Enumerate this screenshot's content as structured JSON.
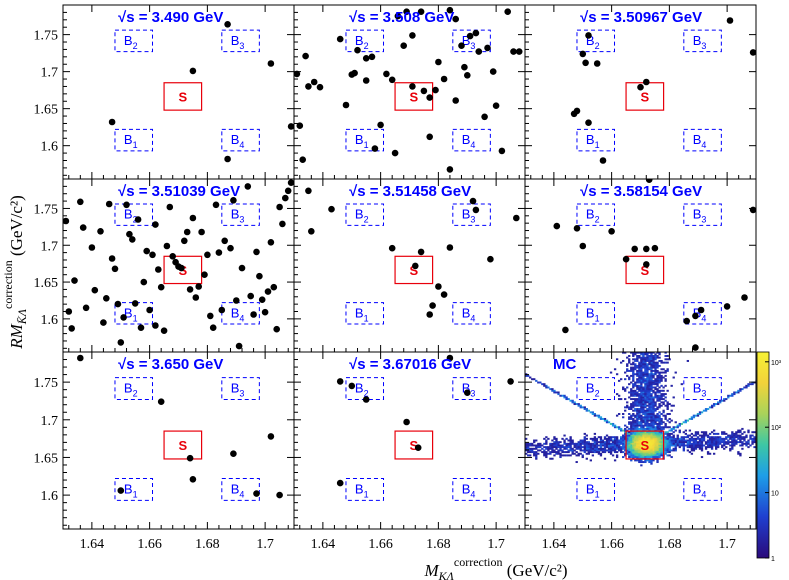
{
  "chart_data": {
    "type": "scatter",
    "xlabel_main": "M",
    "xlabel_sub": "KΛ",
    "xlabel_sup": "correction",
    "xlabel_unit": " (GeV/c²)",
    "ylabel_main": "RM",
    "ylabel_sub": "K̄Λ",
    "ylabel_sup": "correction",
    "ylabel_unit": " (GeV/c²)",
    "xlim": [
      1.63,
      1.71
    ],
    "ylim": [
      1.555,
      1.79
    ],
    "x_ticks": [
      "1.64",
      "1.66",
      "1.68",
      "1.7"
    ],
    "x_tick_values": [
      1.64,
      1.66,
      1.68,
      1.7
    ],
    "y_ticks": [
      "1.6",
      "1.65",
      "1.7",
      "1.75"
    ],
    "y_tick_values": [
      1.6,
      1.65,
      1.7,
      1.75
    ],
    "grid": false,
    "signal_region": {
      "label": "S",
      "x": [
        1.665,
        1.678
      ],
      "y": [
        1.648,
        1.685
      ],
      "color": "#e8000b"
    },
    "sideband_regions": [
      {
        "label": "B",
        "subscript": "2",
        "x": [
          1.648,
          1.661
        ],
        "y": [
          1.727,
          1.756
        ]
      },
      {
        "label": "B",
        "subscript": "3",
        "x": [
          1.685,
          1.698
        ],
        "y": [
          1.727,
          1.756
        ]
      },
      {
        "label": "B",
        "subscript": "1",
        "x": [
          1.648,
          1.661
        ],
        "y": [
          1.593,
          1.622
        ]
      },
      {
        "label": "B",
        "subscript": "4",
        "x": [
          1.685,
          1.698
        ],
        "y": [
          1.593,
          1.622
        ]
      }
    ],
    "panels": [
      {
        "title": "√s = 3.490 GeV",
        "points": [
          [
            1.687,
            1.764
          ],
          [
            1.675,
            1.701
          ],
          [
            1.702,
            1.711
          ],
          [
            1.647,
            1.632
          ],
          [
            1.687,
            1.582
          ],
          [
            1.709,
            1.626
          ]
        ]
      },
      {
        "title": "√s = 3.508 GeV",
        "points": [
          [
            1.631,
            1.697
          ],
          [
            1.634,
            1.721
          ],
          [
            1.635,
            1.68
          ],
          [
            1.637,
            1.686
          ],
          [
            1.639,
            1.679
          ],
          [
            1.646,
            1.744
          ],
          [
            1.65,
            1.696
          ],
          [
            1.651,
            1.698
          ],
          [
            1.655,
            1.718
          ],
          [
            1.657,
            1.72
          ],
          [
            1.662,
            1.697
          ],
          [
            1.664,
            1.689
          ],
          [
            1.666,
            1.775
          ],
          [
            1.669,
            1.781
          ],
          [
            1.671,
            1.749
          ],
          [
            1.674,
            1.781
          ],
          [
            1.675,
            1.674
          ],
          [
            1.677,
            1.665
          ],
          [
            1.679,
            1.675
          ],
          [
            1.68,
            1.713
          ],
          [
            1.682,
            1.69
          ],
          [
            1.684,
            1.783
          ],
          [
            1.686,
            1.771
          ],
          [
            1.688,
            1.735
          ],
          [
            1.691,
            1.748
          ],
          [
            1.693,
            1.752
          ],
          [
            1.694,
            1.727
          ],
          [
            1.697,
            1.732
          ],
          [
            1.699,
            1.7
          ],
          [
            1.7,
            1.654
          ],
          [
            1.702,
            1.593
          ],
          [
            1.704,
            1.781
          ],
          [
            1.706,
            1.727
          ],
          [
            1.708,
            1.727
          ],
          [
            1.655,
            1.688
          ],
          [
            1.66,
            1.628
          ],
          [
            1.648,
            1.655
          ],
          [
            1.658,
            1.596
          ],
          [
            1.665,
            1.59
          ],
          [
            1.671,
            1.68
          ],
          [
            1.677,
            1.612
          ],
          [
            1.684,
            1.568
          ],
          [
            1.689,
            1.706
          ],
          [
            1.696,
            1.639
          ],
          [
            1.632,
            1.627
          ],
          [
            1.633,
            1.581
          ],
          [
            1.652,
            1.729
          ],
          [
            1.668,
            1.735
          ],
          [
            1.686,
            1.661
          ],
          [
            1.69,
            1.695
          ]
        ]
      },
      {
        "title": "√s = 3.50967 GeV",
        "points": [
          [
            1.652,
            1.749
          ],
          [
            1.65,
            1.724
          ],
          [
            1.651,
            1.712
          ],
          [
            1.655,
            1.711
          ],
          [
            1.672,
            1.686
          ],
          [
            1.67,
            1.679
          ],
          [
            1.648,
            1.647
          ],
          [
            1.657,
            1.58
          ],
          [
            1.701,
            1.769
          ],
          [
            1.709,
            1.726
          ],
          [
            1.652,
            1.631
          ],
          [
            1.647,
            1.643
          ]
        ]
      },
      {
        "title": "√s = 3.51039 GeV",
        "points": [
          [
            1.631,
            1.733
          ],
          [
            1.632,
            1.61
          ],
          [
            1.633,
            1.587
          ],
          [
            1.634,
            1.652
          ],
          [
            1.636,
            1.759
          ],
          [
            1.637,
            1.724
          ],
          [
            1.638,
            1.615
          ],
          [
            1.64,
            1.697
          ],
          [
            1.641,
            1.639
          ],
          [
            1.643,
            1.719
          ],
          [
            1.644,
            1.595
          ],
          [
            1.645,
            1.628
          ],
          [
            1.646,
            1.756
          ],
          [
            1.647,
            1.682
          ],
          [
            1.648,
            1.668
          ],
          [
            1.649,
            1.62
          ],
          [
            1.65,
            1.568
          ],
          [
            1.651,
            1.602
          ],
          [
            1.652,
            1.755
          ],
          [
            1.653,
            1.715
          ],
          [
            1.654,
            1.708
          ],
          [
            1.655,
            1.621
          ],
          [
            1.656,
            1.735
          ],
          [
            1.657,
            1.588
          ],
          [
            1.658,
            1.65
          ],
          [
            1.659,
            1.692
          ],
          [
            1.66,
            1.612
          ],
          [
            1.661,
            1.687
          ],
          [
            1.662,
            1.728
          ],
          [
            1.663,
            1.667
          ],
          [
            1.664,
            1.643
          ],
          [
            1.665,
            1.584
          ],
          [
            1.666,
            1.699
          ],
          [
            1.667,
            1.752
          ],
          [
            1.668,
            1.685
          ],
          [
            1.669,
            1.677
          ],
          [
            1.67,
            1.671
          ],
          [
            1.671,
            1.669
          ],
          [
            1.672,
            1.706
          ],
          [
            1.673,
            1.718
          ],
          [
            1.674,
            1.64
          ],
          [
            1.675,
            1.737
          ],
          [
            1.676,
            1.629
          ],
          [
            1.677,
            1.644
          ],
          [
            1.678,
            1.718
          ],
          [
            1.679,
            1.66
          ],
          [
            1.68,
            1.687
          ],
          [
            1.681,
            1.604
          ],
          [
            1.682,
            1.588
          ],
          [
            1.683,
            1.755
          ],
          [
            1.684,
            1.69
          ],
          [
            1.685,
            1.612
          ],
          [
            1.686,
            1.706
          ],
          [
            1.688,
            1.696
          ],
          [
            1.689,
            1.761
          ],
          [
            1.69,
            1.625
          ],
          [
            1.691,
            1.563
          ],
          [
            1.692,
            1.669
          ],
          [
            1.694,
            1.78
          ],
          [
            1.695,
            1.631
          ],
          [
            1.696,
            1.606
          ],
          [
            1.697,
            1.691
          ],
          [
            1.698,
            1.658
          ],
          [
            1.699,
            1.626
          ],
          [
            1.7,
            1.609
          ],
          [
            1.701,
            1.637
          ],
          [
            1.702,
            1.704
          ],
          [
            1.703,
            1.643
          ],
          [
            1.704,
            1.586
          ],
          [
            1.705,
            1.752
          ],
          [
            1.706,
            1.729
          ],
          [
            1.707,
            1.764
          ],
          [
            1.708,
            1.774
          ],
          [
            1.709,
            1.785
          ],
          [
            1.662,
            1.591
          ]
        ]
      },
      {
        "title": "√s = 3.51458 GeV",
        "points": [
          [
            1.635,
            1.774
          ],
          [
            1.636,
            1.719
          ],
          [
            1.643,
            1.749
          ],
          [
            1.664,
            1.696
          ],
          [
            1.672,
            1.672
          ],
          [
            1.678,
            1.618
          ],
          [
            1.68,
            1.644
          ],
          [
            1.682,
            1.633
          ],
          [
            1.684,
            1.697
          ],
          [
            1.692,
            1.76
          ],
          [
            1.693,
            1.748
          ],
          [
            1.698,
            1.681
          ],
          [
            1.707,
            1.737
          ],
          [
            1.674,
            1.691
          ],
          [
            1.677,
            1.606
          ]
        ]
      },
      {
        "title": "√s = 3.58154 GeV",
        "points": [
          [
            1.641,
            1.726
          ],
          [
            1.648,
            1.723
          ],
          [
            1.65,
            1.699
          ],
          [
            1.66,
            1.719
          ],
          [
            1.665,
            1.681
          ],
          [
            1.668,
            1.695
          ],
          [
            1.672,
            1.695
          ],
          [
            1.675,
            1.696
          ],
          [
            1.672,
            1.674
          ],
          [
            1.673,
            1.789
          ],
          [
            1.689,
            1.604
          ],
          [
            1.691,
            1.612
          ],
          [
            1.7,
            1.617
          ],
          [
            1.706,
            1.629
          ],
          [
            1.709,
            1.748
          ],
          [
            1.644,
            1.585
          ],
          [
            1.689,
            1.561
          ],
          [
            1.686,
            1.597
          ]
        ]
      },
      {
        "title": "√s = 3.650 GeV",
        "points": [
          [
            1.636,
            1.782
          ],
          [
            1.65,
            1.606
          ],
          [
            1.664,
            1.724
          ],
          [
            1.674,
            1.649
          ],
          [
            1.675,
            1.621
          ],
          [
            1.689,
            1.655
          ],
          [
            1.702,
            1.678
          ],
          [
            1.705,
            1.6
          ],
          [
            1.697,
            1.602
          ]
        ]
      },
      {
        "title": "√s = 3.67016 GeV",
        "points": [
          [
            1.646,
            1.616
          ],
          [
            1.646,
            1.751
          ],
          [
            1.65,
            1.745
          ],
          [
            1.655,
            1.727
          ],
          [
            1.669,
            1.697
          ],
          [
            1.673,
            1.663
          ],
          [
            1.684,
            1.782
          ],
          [
            1.69,
            1.736
          ],
          [
            1.705,
            1.751
          ]
        ]
      },
      {
        "title": "MC",
        "heatmap": true,
        "core": [
          1.672,
          1.668
        ]
      }
    ],
    "colorbar": {
      "ticks": [
        "10³",
        "10²",
        "10",
        "1"
      ],
      "tick_values": [
        1000,
        100,
        10,
        1
      ],
      "scale": "log"
    },
    "marker_color": "#000000",
    "region_color": "#0000ff"
  }
}
